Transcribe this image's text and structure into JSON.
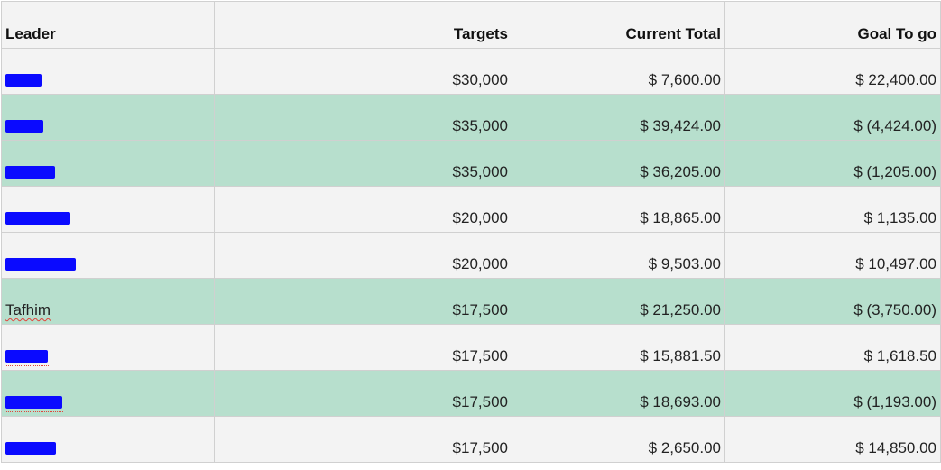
{
  "headers": {
    "leader": "Leader",
    "targets": "Targets",
    "current_total": "Current Total",
    "goal_to_go": "Goal To go"
  },
  "rows": [
    {
      "leader": "",
      "redacted": true,
      "targets": "$30,000",
      "current_total": "$ 7,600.00",
      "goal_to_go": "$ 22,400.00",
      "highlight": false
    },
    {
      "leader": "",
      "redacted": true,
      "targets": "$35,000",
      "current_total": "$ 39,424.00",
      "goal_to_go": "$ (4,424.00)",
      "highlight": true
    },
    {
      "leader": "",
      "redacted": true,
      "targets": "$35,000",
      "current_total": "$ 36,205.00",
      "goal_to_go": "$ (1,205.00)",
      "highlight": true
    },
    {
      "leader": "",
      "redacted": true,
      "targets": "$20,000",
      "current_total": "$ 18,865.00",
      "goal_to_go": "$ 1,135.00",
      "highlight": false
    },
    {
      "leader": "",
      "redacted": true,
      "targets": "$20,000",
      "current_total": "$ 9,503.00",
      "goal_to_go": "$ 10,497.00",
      "highlight": false
    },
    {
      "leader": "Tafhim",
      "redacted": false,
      "targets": "$17,500",
      "current_total": "$ 21,250.00",
      "goal_to_go": "$ (3,750.00)",
      "highlight": true
    },
    {
      "leader": "",
      "redacted": true,
      "targets": "$17,500",
      "current_total": "$ 15,881.50",
      "goal_to_go": "$ 1,618.50",
      "highlight": false
    },
    {
      "leader": "",
      "redacted": true,
      "targets": "$17,500",
      "current_total": "$ 18,693.00",
      "goal_to_go": "$ (1,193.00)",
      "highlight": true
    },
    {
      "leader": "",
      "redacted": true,
      "targets": "$17,500",
      "current_total": "$ 2,650.00",
      "goal_to_go": "$ 14,850.00",
      "highlight": false
    }
  ],
  "colors": {
    "highlight_row": "#b7dfcd",
    "plain_row": "#f3f3f3",
    "grid_line": "#d0d0d0",
    "redaction": "#0a0aff"
  }
}
